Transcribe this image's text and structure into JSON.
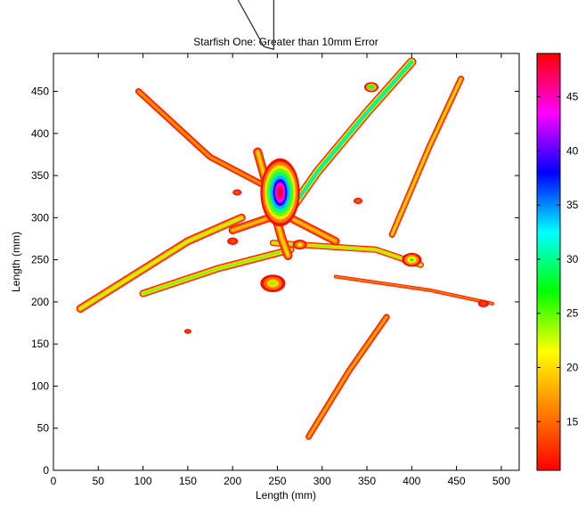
{
  "chart_data": {
    "type": "heatmap",
    "title": "Starfish One: Greater than 10mm Error",
    "xlabel": "Length (mm)",
    "ylabel": "Length (mm)",
    "xlim": [
      0,
      520
    ],
    "ylim": [
      0,
      495
    ],
    "x_ticks": [
      0,
      50,
      100,
      150,
      200,
      250,
      300,
      350,
      400,
      450,
      500
    ],
    "y_ticks": [
      0,
      50,
      100,
      150,
      200,
      250,
      300,
      350,
      400,
      450
    ],
    "grid": false,
    "colorbar": {
      "colormap": "hsv",
      "range": [
        10.5,
        49
      ],
      "ticks": [
        15,
        20,
        25,
        30,
        35,
        40,
        45
      ],
      "colors": [
        "#ff0000",
        "#ff8000",
        "#ffff00",
        "#00ff00",
        "#00ffff",
        "#0000ff",
        "#ff00ff",
        "#ff0000"
      ]
    },
    "arms": [
      {
        "points": [
          [
            30,
            192
          ],
          [
            150,
            272
          ],
          [
            210,
            300
          ]
        ],
        "width": 9,
        "peak": 23
      },
      {
        "points": [
          [
            95,
            450
          ],
          [
            175,
            372
          ],
          [
            250,
            330
          ]
        ],
        "width": 7,
        "peak": 17
      },
      {
        "points": [
          [
            400,
            485
          ],
          [
            350,
            425
          ],
          [
            295,
            355
          ],
          [
            262,
            305
          ]
        ],
        "width": 10,
        "peak": 33
      },
      {
        "points": [
          [
            455,
            465
          ],
          [
            420,
            385
          ],
          [
            378,
            280
          ]
        ],
        "width": 7,
        "peak": 20
      },
      {
        "points": [
          [
            285,
            40
          ],
          [
            330,
            118
          ],
          [
            372,
            182
          ]
        ],
        "width": 7,
        "peak": 18
      },
      {
        "points": [
          [
            100,
            210
          ],
          [
            185,
            240
          ],
          [
            265,
            262
          ]
        ],
        "width": 8,
        "peak": 25
      },
      {
        "points": [
          [
            245,
            270
          ],
          [
            360,
            262
          ],
          [
            410,
            244
          ]
        ],
        "width": 7,
        "peak": 24
      },
      {
        "points": [
          [
            200,
            285
          ],
          [
            255,
            305
          ],
          [
            315,
            272
          ]
        ],
        "width": 9,
        "peak": 19
      },
      {
        "points": [
          [
            315,
            230
          ],
          [
            420,
            214
          ],
          [
            490,
            198
          ]
        ],
        "width": 4,
        "peak": 16
      },
      {
        "points": [
          [
            228,
            378
          ],
          [
            255,
            275
          ],
          [
            262,
            255
          ]
        ],
        "width": 10,
        "peak": 20
      }
    ],
    "center": {
      "x": 253,
      "y": 330,
      "rx": 22,
      "ry": 38,
      "peak": 48
    },
    "blobs": [
      {
        "x": 245,
        "y": 222,
        "r": 14,
        "v": 24
      },
      {
        "x": 400,
        "y": 250,
        "r": 11,
        "v": 27
      },
      {
        "x": 355,
        "y": 455,
        "r": 8,
        "v": 33
      },
      {
        "x": 275,
        "y": 268,
        "r": 8,
        "v": 22
      },
      {
        "x": 200,
        "y": 272,
        "r": 6,
        "v": 15
      },
      {
        "x": 205,
        "y": 330,
        "r": 5,
        "v": 15
      },
      {
        "x": 150,
        "y": 165,
        "r": 4,
        "v": 14
      },
      {
        "x": 340,
        "y": 320,
        "r": 5,
        "v": 16
      },
      {
        "x": 480,
        "y": 198,
        "r": 6,
        "v": 14
      },
      {
        "x": 525,
        "y": 207,
        "r": 4,
        "v": 13
      }
    ],
    "outline": [
      [
        184,
        601
      ],
      [
        246,
        614
      ],
      [
        246,
        500
      ],
      [
        235,
        503
      ]
    ]
  }
}
